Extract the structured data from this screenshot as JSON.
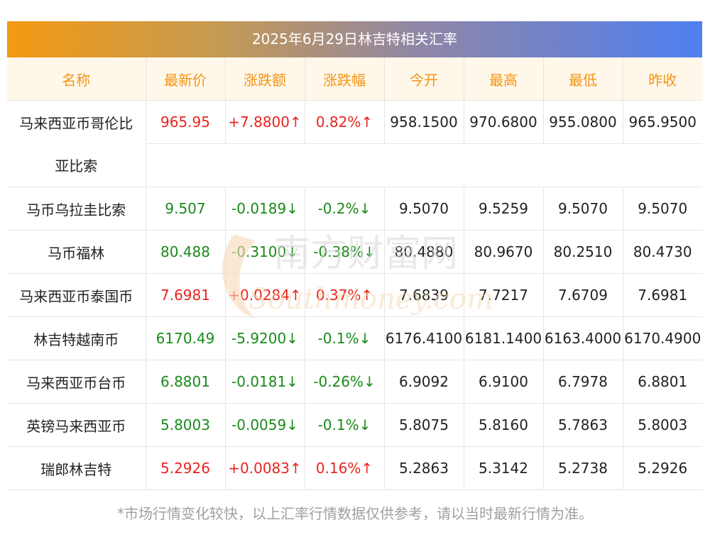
{
  "title": "2025年6月29日林吉特相关汇率",
  "headers": [
    "名称",
    "最新价",
    "涨跌额",
    "涨跌幅",
    "今开",
    "最高",
    "最低",
    "昨收"
  ],
  "rows": [
    {
      "name_line1": "马来西亚币哥伦比",
      "name_line2": "亚比索",
      "latest": "965.95",
      "change": "+7.8800↑",
      "pct": "0.82%↑",
      "open": "958.1500",
      "high": "970.6800",
      "low": "955.0800",
      "prev": "965.9500",
      "dir": "up"
    },
    {
      "name": "马币乌拉圭比索",
      "latest": "9.507",
      "change": "-0.0189↓",
      "pct": "-0.2%↓",
      "open": "9.5070",
      "high": "9.5259",
      "low": "9.5070",
      "prev": "9.5070",
      "dir": "down"
    },
    {
      "name": "马币福林",
      "latest": "80.488",
      "change": "-0.3100↓",
      "pct": "-0.38%↓",
      "open": "80.4880",
      "high": "80.9670",
      "low": "80.2510",
      "prev": "80.4730",
      "dir": "down"
    },
    {
      "name": "马来西亚币泰国币",
      "latest": "7.6981",
      "change": "+0.0284↑",
      "pct": "0.37%↑",
      "open": "7.6839",
      "high": "7.7217",
      "low": "7.6709",
      "prev": "7.6981",
      "dir": "up"
    },
    {
      "name": "林吉特越南币",
      "latest": "6170.49",
      "change": "-5.9200↓",
      "pct": "-0.1%↓",
      "open": "6176.4100",
      "high": "6181.1400",
      "low": "6163.4000",
      "prev": "6170.4900",
      "dir": "down"
    },
    {
      "name": "马来西亚币台币",
      "latest": "6.8801",
      "change": "-0.0181↓",
      "pct": "-0.26%↓",
      "open": "6.9092",
      "high": "6.9100",
      "low": "6.7978",
      "prev": "6.8801",
      "dir": "down"
    },
    {
      "name": "英镑马来西亚币",
      "latest": "5.8003",
      "change": "-0.0059↓",
      "pct": "-0.1%↓",
      "open": "5.8075",
      "high": "5.8160",
      "low": "5.7863",
      "prev": "5.8003",
      "dir": "down"
    },
    {
      "name": "瑞郎林吉特",
      "latest": "5.2926",
      "change": "+0.0083↑",
      "pct": "0.16%↑",
      "open": "5.2863",
      "high": "5.3142",
      "low": "5.2738",
      "prev": "5.2926",
      "dir": "up"
    }
  ],
  "watermark": {
    "cn": "南方财富网",
    "en": "Southmoney.com"
  },
  "footnote": "*市场行情变化较快，以上汇率行情数据仅供参考，请以当时最新行情为准。",
  "colors": {
    "up": "#e8241f",
    "down": "#1a8a1a",
    "header_text": "#f39512",
    "header_bg": "#fff7ea"
  }
}
